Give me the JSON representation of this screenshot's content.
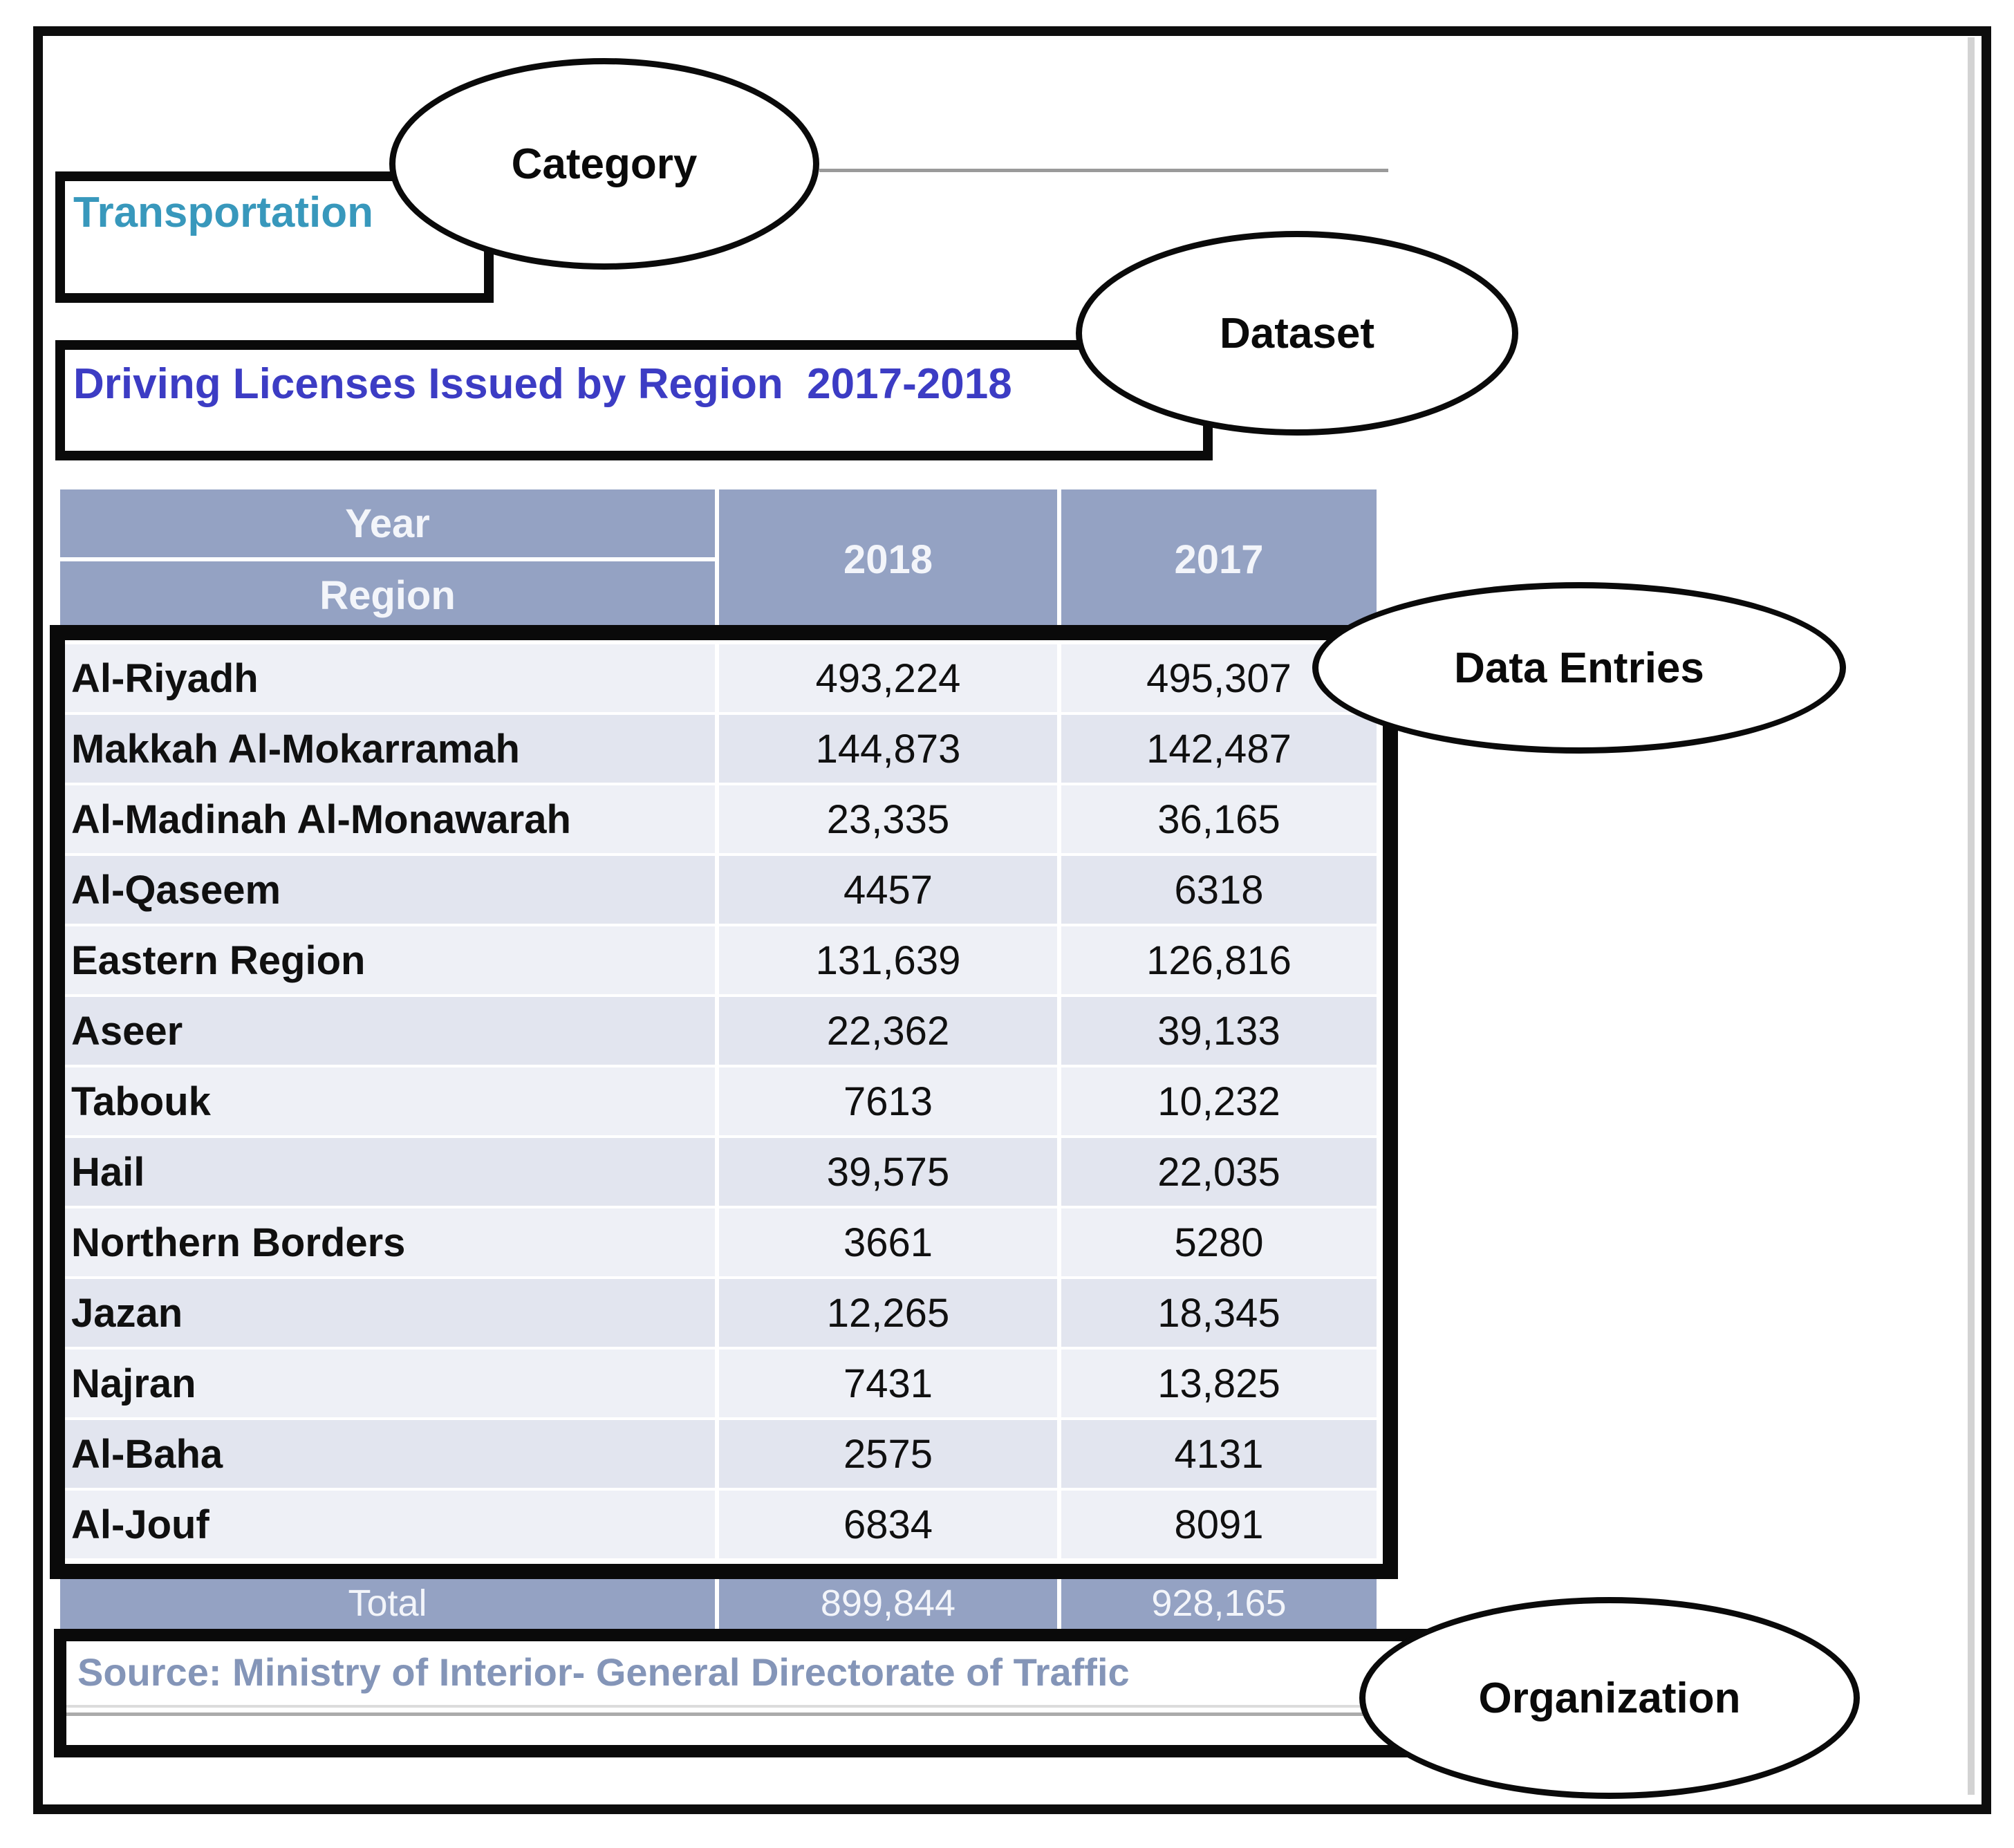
{
  "figure": {
    "category_value": "Transportation",
    "dataset_title": "Driving Licenses Issued by Region  2017-2018",
    "source_text": "Source: Ministry of Interior- General Directorate of Traffic"
  },
  "callouts": {
    "category": "Category",
    "dataset": "Dataset",
    "data_entries": "Data Entries",
    "organization": "Organization"
  },
  "table": {
    "header": {
      "year_label": "Year",
      "region_label": "Region",
      "col_2018": "2018",
      "col_2017": "2017"
    },
    "rows": [
      {
        "region": "Al-Riyadh",
        "y2018": "493,224",
        "y2017": "495,307"
      },
      {
        "region": "Makkah Al-Mokarramah",
        "y2018": "144,873",
        "y2017": "142,487"
      },
      {
        "region": "Al-Madinah Al-Monawarah",
        "y2018": "23,335",
        "y2017": "36,165"
      },
      {
        "region": "Al-Qaseem",
        "y2018": "4457",
        "y2017": "6318"
      },
      {
        "region": "Eastern Region",
        "y2018": "131,639",
        "y2017": "126,816"
      },
      {
        "region": "Aseer",
        "y2018": "22,362",
        "y2017": "39,133"
      },
      {
        "region": "Tabouk",
        "y2018": "7613",
        "y2017": "10,232"
      },
      {
        "region": "Hail",
        "y2018": "39,575",
        "y2017": "22,035"
      },
      {
        "region": "Northern Borders",
        "y2018": "3661",
        "y2017": "5280"
      },
      {
        "region": "Jazan",
        "y2018": "12,265",
        "y2017": "18,345"
      },
      {
        "region": "Najran",
        "y2018": "7431",
        "y2017": "13,825"
      },
      {
        "region": "Al-Baha",
        "y2018": "2575",
        "y2017": "4131"
      },
      {
        "region": "Al-Jouf",
        "y2018": "6834",
        "y2017": "8091"
      }
    ],
    "total": {
      "label": "Total",
      "y2018": "899,844",
      "y2017": "928,165"
    }
  },
  "colors": {
    "header_bg": "#94A2C3",
    "row_light": "#EEF0F6",
    "row_dark": "#E2E5EF",
    "category_text": "#3898BC",
    "dataset_title_text": "#3C3CC4",
    "source_text": "#8495B8",
    "annotation_black": "#0A0A0A"
  },
  "chart_data": {
    "type": "table",
    "title": "Driving Licenses Issued by Region 2017-2018",
    "category": "Transportation",
    "source": "Ministry of Interior- General Directorate of Traffic",
    "columns": [
      "Region",
      "2018",
      "2017"
    ],
    "rows": [
      [
        "Al-Riyadh",
        493224,
        495307
      ],
      [
        "Makkah Al-Mokarramah",
        144873,
        142487
      ],
      [
        "Al-Madinah Al-Monawarah",
        23335,
        36165
      ],
      [
        "Al-Qaseem",
        4457,
        6318
      ],
      [
        "Eastern Region",
        131639,
        126816
      ],
      [
        "Aseer",
        22362,
        39133
      ],
      [
        "Tabouk",
        7613,
        10232
      ],
      [
        "Hail",
        39575,
        22035
      ],
      [
        "Northern Borders",
        3661,
        5280
      ],
      [
        "Jazan",
        12265,
        18345
      ],
      [
        "Najran",
        7431,
        13825
      ],
      [
        "Al-Baha",
        2575,
        4131
      ],
      [
        "Al-Jouf",
        6834,
        8091
      ]
    ],
    "total": [
      "Total",
      899844,
      928165
    ]
  }
}
